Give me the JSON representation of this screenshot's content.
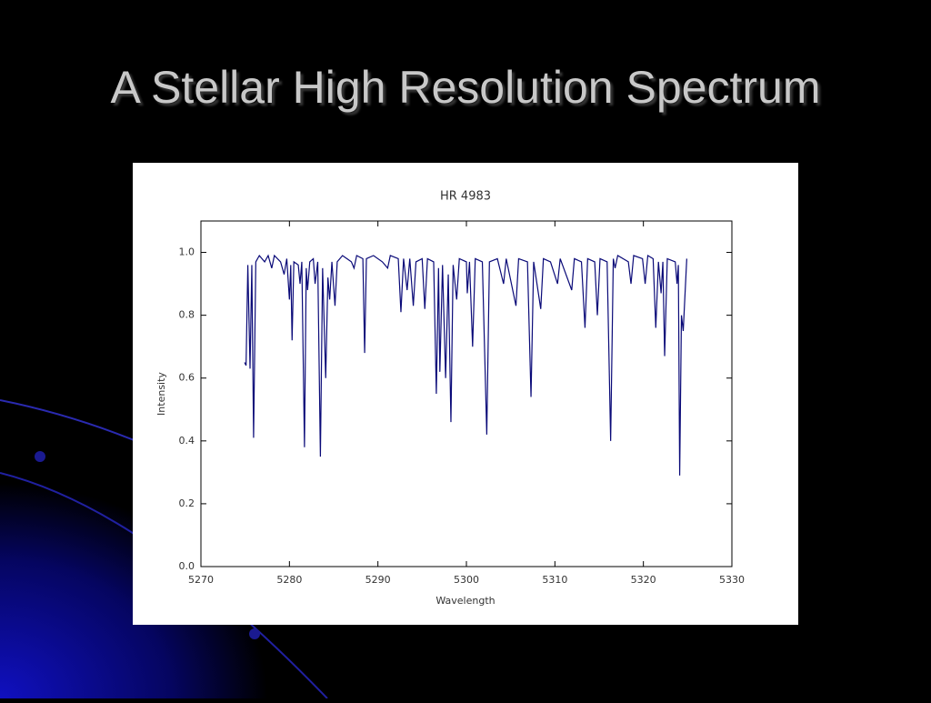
{
  "slide_title": "A Stellar High Resolution Spectrum",
  "chart_data": {
    "type": "line",
    "title": "HR 4983",
    "x_label": "Wavelength",
    "y_label": "Intensity",
    "color": "#0a0a78",
    "xlim": [
      5270,
      5330
    ],
    "xticks": [
      5270,
      5280,
      5290,
      5300,
      5310,
      5320,
      5330
    ],
    "ylim": [
      0,
      1.1
    ],
    "yticks": [
      {
        "value": 0,
        "label": "0.0"
      },
      0.2,
      0.4,
      0.6,
      0.8,
      {
        "value": 1,
        "label": "1.0"
      }
    ],
    "x": [
      5274.93,
      5275.1,
      5275.3,
      5275.55,
      5275.75,
      5275.95,
      5276.2,
      5276.6,
      5277.2,
      5277.6,
      5278.0,
      5278.3,
      5279.0,
      5279.4,
      5279.7,
      5280.0,
      5280.15,
      5280.3,
      5280.5,
      5281.0,
      5281.2,
      5281.4,
      5281.7,
      5281.9,
      5282.05,
      5282.3,
      5282.7,
      5282.9,
      5283.2,
      5283.5,
      5283.75,
      5284.1,
      5284.35,
      5284.55,
      5284.8,
      5285.15,
      5285.4,
      5286.0,
      5287.0,
      5287.3,
      5287.6,
      5288.3,
      5288.5,
      5288.7,
      5289.5,
      5290.5,
      5291.1,
      5291.4,
      5292.3,
      5292.6,
      5292.9,
      5293.3,
      5293.6,
      5294.0,
      5294.3,
      5295.0,
      5295.3,
      5295.6,
      5296.3,
      5296.6,
      5296.85,
      5297.0,
      5297.3,
      5297.65,
      5297.95,
      5298.25,
      5298.5,
      5298.9,
      5299.2,
      5300.0,
      5300.1,
      5300.35,
      5300.7,
      5301.0,
      5301.8,
      5302.3,
      5302.6,
      5303.5,
      5304.2,
      5304.5,
      5305.6,
      5305.9,
      5306.9,
      5307.3,
      5307.6,
      5308.4,
      5308.7,
      5309.5,
      5310.3,
      5310.6,
      5311.9,
      5312.2,
      5313.0,
      5313.4,
      5313.7,
      5314.5,
      5314.8,
      5315.1,
      5315.9,
      5316.3,
      5316.6,
      5316.8,
      5317.1,
      5318.3,
      5318.6,
      5318.9,
      5319.9,
      5320.2,
      5320.5,
      5321.1,
      5321.4,
      5321.7,
      5322.0,
      5322.2,
      5322.4,
      5322.7,
      5323.6,
      5323.8,
      5323.95,
      5324.1,
      5324.3,
      5324.5,
      5324.9
    ],
    "values": [
      0.65,
      0.64,
      0.96,
      0.63,
      0.96,
      0.41,
      0.97,
      0.99,
      0.97,
      0.99,
      0.95,
      0.99,
      0.97,
      0.93,
      0.98,
      0.85,
      0.96,
      0.72,
      0.97,
      0.96,
      0.9,
      0.97,
      0.38,
      0.95,
      0.88,
      0.97,
      0.98,
      0.9,
      0.97,
      0.35,
      0.95,
      0.6,
      0.92,
      0.85,
      0.97,
      0.83,
      0.97,
      0.99,
      0.97,
      0.95,
      0.99,
      0.98,
      0.68,
      0.98,
      0.99,
      0.97,
      0.95,
      0.99,
      0.98,
      0.81,
      0.98,
      0.88,
      0.98,
      0.83,
      0.97,
      0.98,
      0.82,
      0.98,
      0.97,
      0.55,
      0.95,
      0.62,
      0.96,
      0.6,
      0.93,
      0.46,
      0.96,
      0.85,
      0.98,
      0.97,
      0.87,
      0.97,
      0.7,
      0.98,
      0.97,
      0.42,
      0.97,
      0.98,
      0.9,
      0.98,
      0.83,
      0.98,
      0.97,
      0.54,
      0.97,
      0.82,
      0.98,
      0.97,
      0.9,
      0.98,
      0.88,
      0.98,
      0.97,
      0.76,
      0.98,
      0.97,
      0.8,
      0.98,
      0.97,
      0.4,
      0.98,
      0.95,
      0.99,
      0.97,
      0.9,
      0.99,
      0.98,
      0.9,
      0.99,
      0.98,
      0.76,
      0.97,
      0.87,
      0.97,
      0.67,
      0.98,
      0.97,
      0.9,
      0.96,
      0.29,
      0.8,
      0.75,
      0.98
    ]
  }
}
